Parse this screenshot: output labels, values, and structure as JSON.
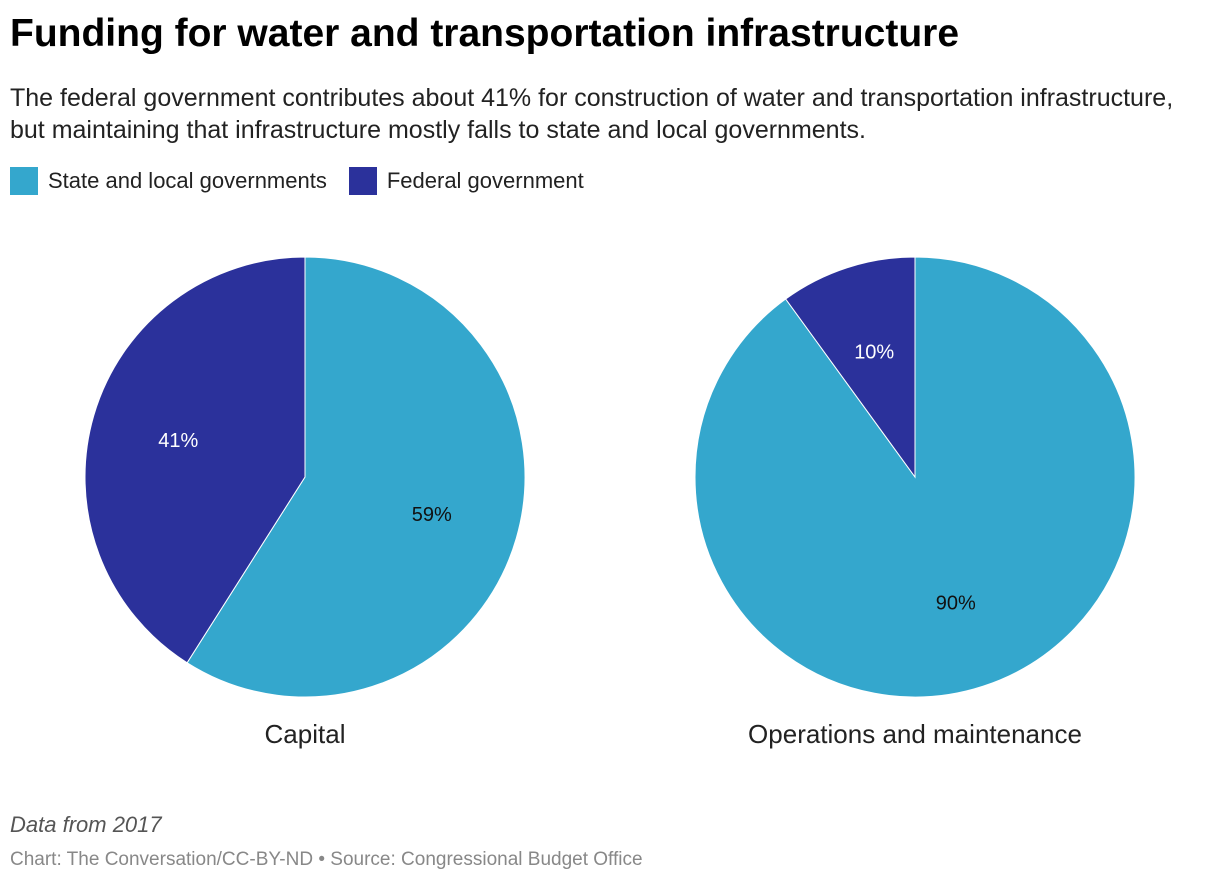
{
  "title": "Funding for water and transportation infrastructure",
  "subtitle": "The federal government contributes about 41% for construction of water and transportation infrastructure, but maintaining that infrastructure mostly falls to state and local governments.",
  "legend": [
    {
      "label": "State and local governments",
      "color": "#34a7cd"
    },
    {
      "label": "Federal government",
      "color": "#2b319b"
    }
  ],
  "chart_data": [
    {
      "type": "pie",
      "title": "Capital",
      "slices": [
        {
          "name": "State and local governments",
          "value": 59,
          "label": "59%"
        },
        {
          "name": "Federal government",
          "value": 41,
          "label": "41%"
        }
      ]
    },
    {
      "type": "pie",
      "title": "Operations and maintenance",
      "slices": [
        {
          "name": "State and local governments",
          "value": 90,
          "label": "90%"
        },
        {
          "name": "Federal government",
          "value": 10,
          "label": "10%"
        }
      ]
    }
  ],
  "note": "Data from 2017",
  "source": "Chart: The Conversation/CC-BY-ND • Source: Congressional Budget Office"
}
